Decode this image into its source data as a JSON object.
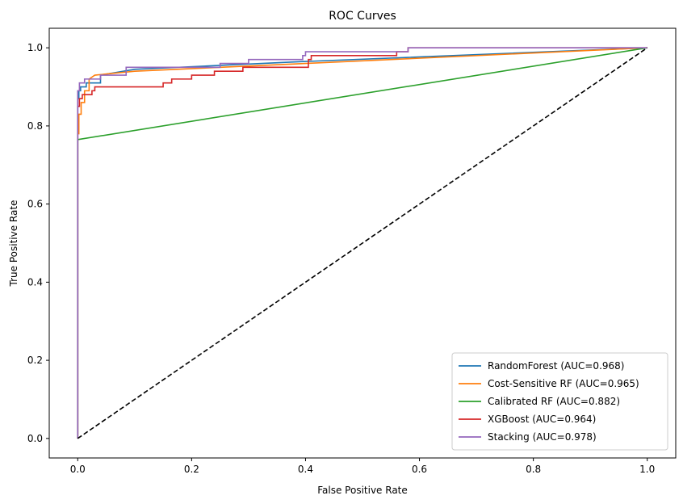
{
  "chart_data": {
    "type": "line",
    "title": "ROC Curves",
    "xlabel": "False Positive Rate",
    "ylabel": "True Positive Rate",
    "xlim": [
      -0.05,
      1.05
    ],
    "ylim": [
      -0.05,
      1.05
    ],
    "xticks": [
      0.0,
      0.2,
      0.4,
      0.6,
      0.8,
      1.0
    ],
    "yticks": [
      0.0,
      0.2,
      0.4,
      0.6,
      0.8,
      1.0
    ],
    "xtick_labels": [
      "0.0",
      "0.2",
      "0.4",
      "0.6",
      "0.8",
      "1.0"
    ],
    "ytick_labels": [
      "0.0",
      "0.2",
      "0.4",
      "0.6",
      "0.8",
      "1.0"
    ],
    "grid": false,
    "legend_position": "lower-right",
    "series": [
      {
        "name": "RandomForest (AUC=0.968)",
        "color": "#1f77b4",
        "style": "step",
        "x": [
          0,
          0,
          0.002,
          0.002,
          0.005,
          0.005,
          0.015,
          0.015,
          0.04,
          0.04,
          0.1,
          0.25,
          0.4,
          1.0
        ],
        "y": [
          0,
          0.87,
          0.87,
          0.89,
          0.89,
          0.9,
          0.9,
          0.91,
          0.91,
          0.93,
          0.945,
          0.955,
          0.965,
          1.0
        ]
      },
      {
        "name": "Cost-Sensitive RF (AUC=0.965)",
        "color": "#ff7f0e",
        "style": "step",
        "x": [
          0,
          0,
          0.002,
          0.002,
          0.006,
          0.006,
          0.012,
          0.012,
          0.02,
          0.02,
          0.03,
          0.1,
          0.4,
          1.0
        ],
        "y": [
          0,
          0.78,
          0.78,
          0.83,
          0.83,
          0.86,
          0.86,
          0.89,
          0.89,
          0.92,
          0.93,
          0.94,
          0.96,
          1.0
        ]
      },
      {
        "name": "Calibrated RF (AUC=0.882)",
        "color": "#2ca02c",
        "style": "step",
        "x": [
          0,
          0,
          1.0
        ],
        "y": [
          0,
          0.765,
          1.0
        ]
      },
      {
        "name": "XGBoost (AUC=0.964)",
        "color": "#d62728",
        "style": "step",
        "x": [
          0,
          0,
          0.003,
          0.003,
          0.008,
          0.008,
          0.025,
          0.025,
          0.03,
          0.03,
          0.15,
          0.15,
          0.165,
          0.165,
          0.2,
          0.2,
          0.24,
          0.24,
          0.29,
          0.29,
          0.3,
          0.3,
          0.405,
          0.405,
          0.41,
          0.41,
          0.56,
          0.56,
          0.58,
          0.58,
          0.61,
          0.61,
          1.0
        ],
        "y": [
          0,
          0.85,
          0.85,
          0.87,
          0.87,
          0.88,
          0.88,
          0.89,
          0.89,
          0.9,
          0.9,
          0.91,
          0.91,
          0.92,
          0.92,
          0.93,
          0.93,
          0.94,
          0.94,
          0.95,
          0.95,
          0.95,
          0.95,
          0.97,
          0.97,
          0.98,
          0.98,
          0.99,
          0.99,
          1.0,
          1.0,
          1.0,
          1.0
        ]
      },
      {
        "name": "Stacking (AUC=0.978)",
        "color": "#9467bd",
        "style": "step",
        "x": [
          0,
          0,
          0.003,
          0.003,
          0.012,
          0.012,
          0.04,
          0.04,
          0.085,
          0.085,
          0.25,
          0.25,
          0.3,
          0.3,
          0.395,
          0.395,
          0.4,
          0.4,
          0.58,
          0.58,
          1.0
        ],
        "y": [
          0,
          0.89,
          0.89,
          0.91,
          0.91,
          0.92,
          0.92,
          0.93,
          0.93,
          0.95,
          0.95,
          0.96,
          0.96,
          0.97,
          0.97,
          0.98,
          0.98,
          0.99,
          0.99,
          1.0,
          1.0
        ]
      }
    ],
    "reference_line": {
      "color": "#000000",
      "style": "dashed",
      "x": [
        0,
        1
      ],
      "y": [
        0,
        1
      ]
    }
  }
}
